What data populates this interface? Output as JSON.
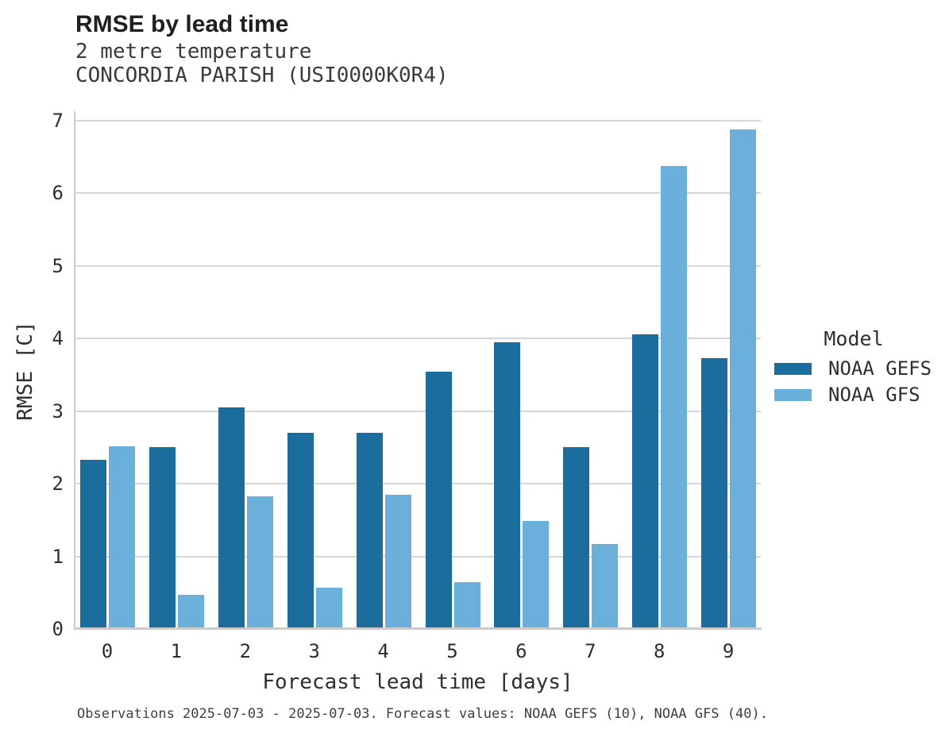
{
  "header": {
    "title": "RMSE by lead time",
    "subtitle_variable": "2 metre temperature",
    "subtitle_station": "CONCORDIA PARISH (USI0000K0R4)"
  },
  "legend": {
    "title": "Model",
    "entries": [
      {
        "label": "NOAA GEFS",
        "color": "#1b6d9e"
      },
      {
        "label": "NOAA GFS",
        "color": "#6bb0da"
      }
    ]
  },
  "footer": {
    "note": "Observations 2025-07-03 - 2025-07-03. Forecast values: NOAA GEFS (10), NOAA GFS (40)."
  },
  "colors": {
    "gefs": "#1b6d9e",
    "gfs": "#6bb0da",
    "gridline": "#d6d6d6",
    "spine": "#cbcbcb"
  },
  "chart_data": {
    "type": "bar",
    "title": "RMSE by lead time",
    "subtitle": "2 metre temperature — CONCORDIA PARISH (USI0000K0R4)",
    "xlabel": "Forecast lead time [days]",
    "ylabel": "RMSE [C]",
    "categories": [
      "0",
      "1",
      "2",
      "3",
      "4",
      "5",
      "6",
      "7",
      "8",
      "9"
    ],
    "series": [
      {
        "name": "NOAA GEFS",
        "color": "#1b6d9e",
        "values": [
          2.33,
          2.51,
          3.05,
          2.7,
          2.7,
          3.54,
          3.95,
          2.51,
          4.06,
          3.73
        ]
      },
      {
        "name": "NOAA GFS",
        "color": "#6bb0da",
        "values": [
          2.52,
          0.47,
          1.83,
          0.57,
          1.85,
          0.65,
          1.49,
          1.17,
          6.38,
          6.88
        ]
      }
    ],
    "ylim": [
      0,
      7
    ],
    "yticks": [
      0,
      1,
      2,
      3,
      4,
      5,
      6,
      7
    ],
    "grid": true,
    "legend_title": "Model",
    "legend_position": "right"
  }
}
